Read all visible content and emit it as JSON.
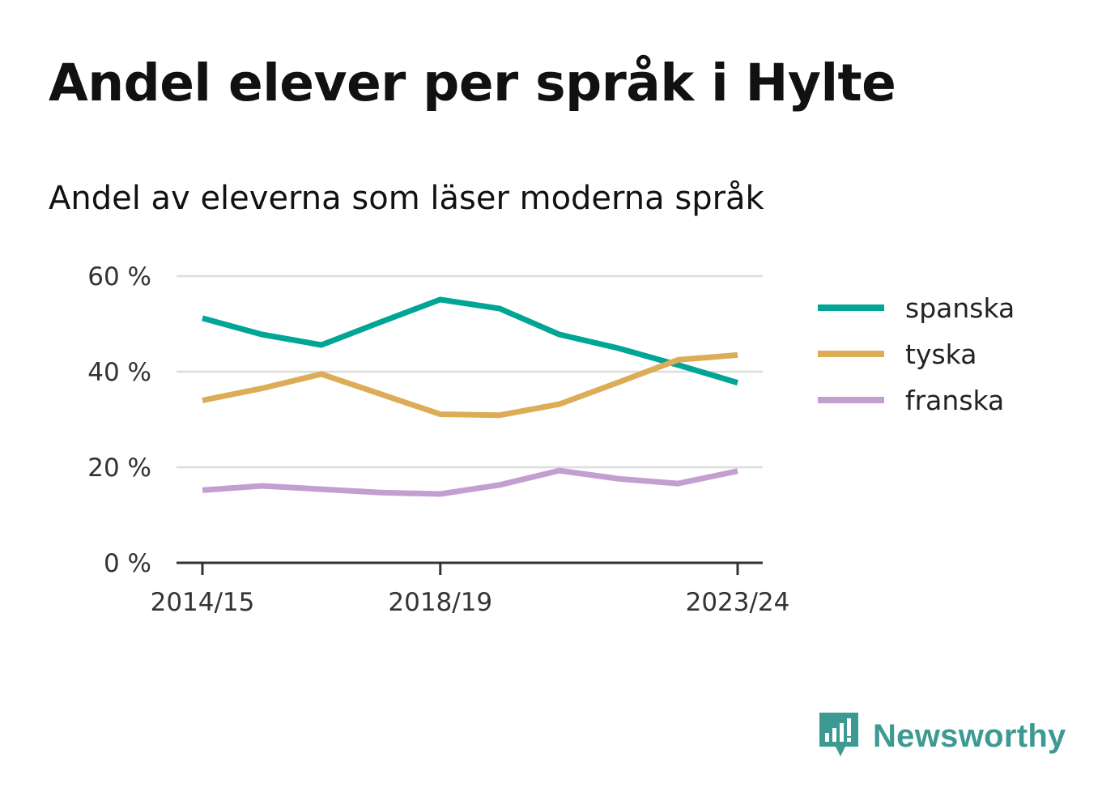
{
  "title": "Andel elever per språk i Hylte",
  "subtitle": "Andel av eleverna som läser moderna språk",
  "brand": {
    "name": "Newsworthy",
    "icon": "newsworthy-logo-icon",
    "color": "#3d9a92"
  },
  "chart_data": {
    "type": "line",
    "x": [
      "2014/15",
      "2015/16",
      "2016/17",
      "2017/18",
      "2018/19",
      "2019/20",
      "2020/21",
      "2021/22",
      "2022/23",
      "2023/24"
    ],
    "xticks": [
      "2014/15",
      "2018/19",
      "2023/24"
    ],
    "yticks": [
      0,
      20,
      40,
      60
    ],
    "ytick_labels": [
      "0 %",
      "20 %",
      "40 %",
      "60 %"
    ],
    "ylim": [
      0,
      60
    ],
    "grid": true,
    "legend_position": "right",
    "series": [
      {
        "name": "spanska",
        "color": "#00a596",
        "values": [
          51.2,
          47.8,
          45.6,
          50.4,
          55.1,
          53.2,
          47.8,
          44.9,
          41.4,
          37.7
        ]
      },
      {
        "name": "tyska",
        "color": "#dcac57",
        "values": [
          34.0,
          36.5,
          39.5,
          35.3,
          31.1,
          30.9,
          33.2,
          37.8,
          42.5,
          43.5
        ]
      },
      {
        "name": "franska",
        "color": "#c39fcf",
        "values": [
          15.2,
          16.1,
          15.4,
          14.7,
          14.4,
          16.3,
          19.3,
          17.6,
          16.6,
          19.2
        ]
      }
    ]
  }
}
